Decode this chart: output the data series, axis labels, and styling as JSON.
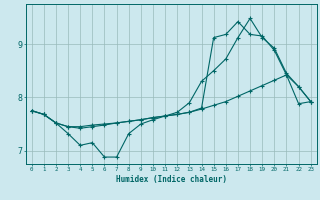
{
  "xlabel": "Humidex (Indice chaleur)",
  "bg_color": "#cce8ee",
  "line_color": "#006666",
  "grid_color": "#99bbbb",
  "xlim": [
    -0.5,
    23.5
  ],
  "ylim": [
    6.75,
    9.75
  ],
  "xticks": [
    0,
    1,
    2,
    3,
    4,
    5,
    6,
    7,
    8,
    9,
    10,
    11,
    12,
    13,
    14,
    15,
    16,
    17,
    18,
    19,
    20,
    21,
    22,
    23
  ],
  "yticks": [
    7,
    8,
    9
  ],
  "line1_x": [
    0,
    1,
    2,
    3,
    4,
    5,
    6,
    7,
    8,
    9,
    10,
    11,
    12,
    13,
    14,
    15,
    16,
    17,
    18,
    19,
    20,
    21,
    22,
    23
  ],
  "line1_y": [
    7.75,
    7.68,
    7.52,
    7.32,
    7.1,
    7.15,
    6.88,
    6.88,
    7.32,
    7.5,
    7.58,
    7.65,
    7.72,
    7.9,
    8.3,
    8.5,
    8.72,
    9.12,
    9.48,
    9.12,
    8.92,
    8.45,
    8.2,
    7.92
  ],
  "line2_x": [
    0,
    1,
    2,
    3,
    4,
    5,
    6,
    7,
    8,
    9,
    10,
    11,
    12,
    13,
    14,
    15,
    16,
    17,
    18,
    19,
    20,
    21,
    22,
    23
  ],
  "line2_y": [
    7.75,
    7.68,
    7.52,
    7.45,
    7.45,
    7.48,
    7.5,
    7.52,
    7.55,
    7.58,
    7.62,
    7.65,
    7.68,
    7.72,
    7.78,
    7.85,
    7.92,
    8.02,
    8.12,
    8.22,
    8.32,
    8.42,
    7.88,
    7.92
  ],
  "line3_x": [
    0,
    1,
    2,
    3,
    4,
    5,
    6,
    7,
    8,
    9,
    10,
    11,
    12,
    13,
    14,
    15,
    16,
    17,
    18,
    19,
    20,
    21,
    22,
    23
  ],
  "line3_y": [
    7.75,
    7.68,
    7.52,
    7.45,
    7.42,
    7.45,
    7.48,
    7.52,
    7.55,
    7.58,
    7.62,
    7.65,
    7.68,
    7.72,
    7.8,
    9.12,
    9.18,
    9.42,
    9.18,
    9.15,
    8.88,
    8.42,
    8.2,
    7.92
  ]
}
